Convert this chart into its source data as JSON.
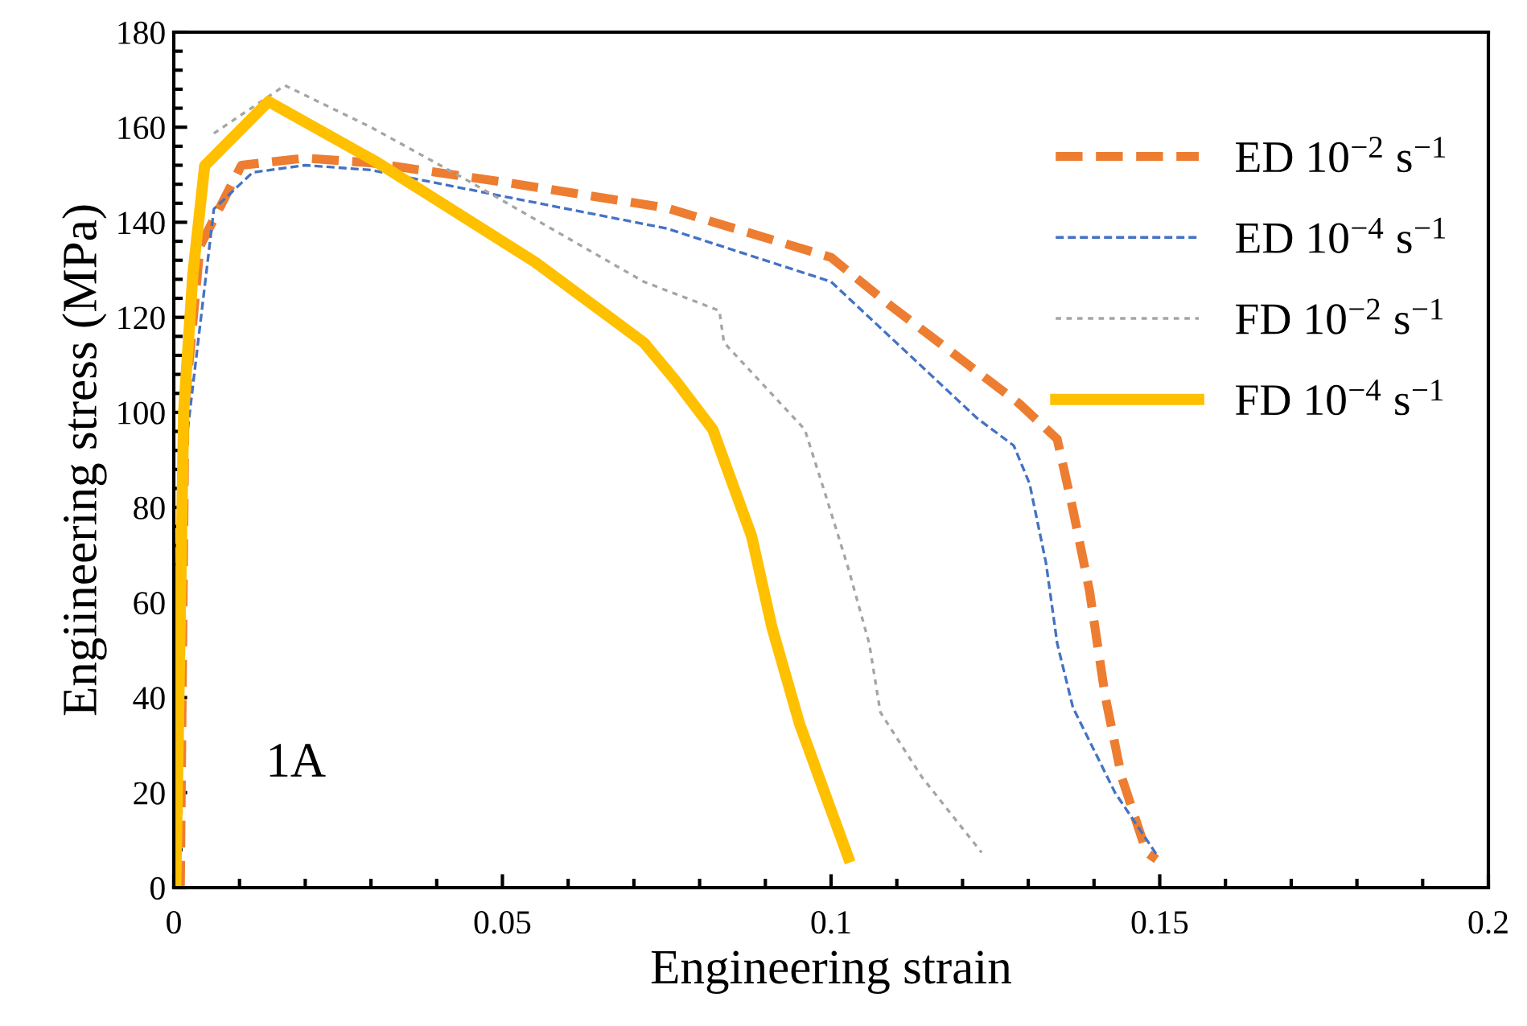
{
  "chart_data": {
    "type": "line",
    "xlabel": "Engineering strain",
    "ylabel": "Engiineering stress (MPa)",
    "xlim": [
      0,
      0.2
    ],
    "ylim": [
      0,
      180
    ],
    "xticks": [
      0,
      0.05,
      0.1,
      0.15,
      0.2
    ],
    "yticks": [
      0,
      20,
      40,
      60,
      80,
      100,
      120,
      140,
      160,
      180
    ],
    "grid": false,
    "legend": "top right",
    "marker": "none",
    "annotations": [
      "1A"
    ],
    "series": [
      {
        "name": "ED 10$^{−2}$ s$^{−1}$",
        "color": "#ed7d31",
        "line_style": "dashed",
        "x": [
          0.001,
          0.0017,
          0.004,
          0.0103,
          0.02,
          0.03,
          0.05,
          0.075,
          0.1,
          0.109,
          0.1285,
          0.1344,
          0.1368,
          0.1393,
          0.1417,
          0.1442,
          0.148,
          0.1495
        ],
        "values": [
          0,
          101,
          135,
          152,
          153.5,
          152.5,
          148.5,
          143,
          132.6,
          122.5,
          102,
          94.4,
          79.5,
          62.6,
          40.3,
          23.3,
          7.4,
          6
        ]
      },
      {
        "name": "ED 10$^{−4}$ s$^{−1}$",
        "color": "#4472c4",
        "line_style": "dashed",
        "x": [
          0.0005,
          0.002,
          0.0061,
          0.012,
          0.02,
          0.03,
          0.05,
          0.075,
          0.1,
          0.1222,
          0.1278,
          0.1302,
          0.1327,
          0.1344,
          0.1368,
          0.1432,
          0.1498
        ],
        "values": [
          0,
          95,
          142.8,
          150.5,
          152,
          151,
          145.5,
          138.7,
          127.5,
          98.8,
          93,
          85,
          68.3,
          51.4,
          37.9,
          20,
          6.4
        ]
      },
      {
        "name": "FD 10$^{−2}$ s$^{−1}$",
        "color": "#a5a5a5",
        "line_style": "dotted",
        "x": [
          0.0003,
          0.002,
          0.0037,
          0.0061,
          0.0169,
          0.03,
          0.0438,
          0.0715,
          0.083,
          0.0837,
          0.096,
          0.0991,
          0.1026,
          0.1058,
          0.1075,
          0.1138,
          0.1229
        ],
        "values": [
          0,
          110,
          null,
          158.7,
          168.8,
          160,
          149.5,
          127.5,
          121.4,
          114.7,
          96.4,
          82.9,
          67.3,
          51.4,
          36.9,
          23.3,
          7.4
        ]
      },
      {
        "name": "FD 10$^{−4}$ s$^{−1}$",
        "color": "#ffc000",
        "line_style": "solid",
        "x": [
          0.0003,
          0.0015,
          0.0029,
          0.0047,
          0.0144,
          0.0306,
          0.055,
          0.0715,
          0.0764,
          0.082,
          0.0879,
          0.091,
          0.0952,
          0.1026
        ],
        "values": [
          0,
          100,
          129,
          151.9,
          165.4,
          152.9,
          131.6,
          114.7,
          106.6,
          96.4,
          74,
          54.8,
          34.5,
          6.4
        ]
      }
    ]
  }
}
